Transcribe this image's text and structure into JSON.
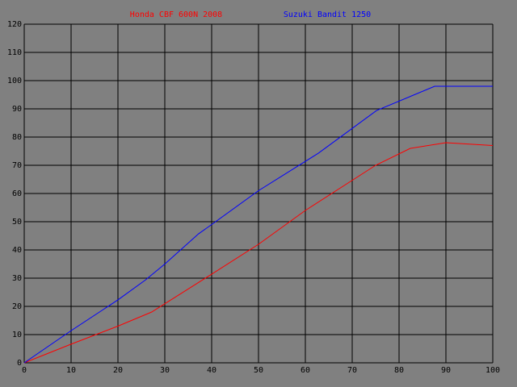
{
  "chart_data": {
    "type": "line",
    "series": [
      {
        "name": "Honda CBF 600N 2008",
        "color": "#ff0000",
        "x": [
          0,
          10,
          20,
          27.2,
          40,
          50,
          60,
          75,
          82.4,
          90,
          100
        ],
        "values": [
          0,
          6.6,
          13,
          18,
          31.4,
          42,
          54,
          70,
          76,
          78,
          77
        ]
      },
      {
        "name": "Suzuki Bandit 1250",
        "color": "#0000ff",
        "x": [
          0,
          10,
          20,
          25.9,
          30,
          37.2,
          40,
          50,
          62.8,
          75.2,
          87.6,
          100
        ],
        "values": [
          0,
          11.4,
          22.3,
          29.4,
          35,
          45.7,
          49,
          61,
          74.3,
          89.4,
          98,
          98
        ]
      }
    ],
    "xlim": [
      0,
      100
    ],
    "xticks": [
      0,
      10,
      20,
      30,
      40,
      50,
      60,
      70,
      80,
      90,
      100
    ],
    "ylim": [
      0,
      120
    ],
    "yticks": [
      0,
      10,
      20,
      30,
      40,
      50,
      60,
      70,
      80,
      90,
      100,
      110,
      120
    ],
    "grid": true
  }
}
